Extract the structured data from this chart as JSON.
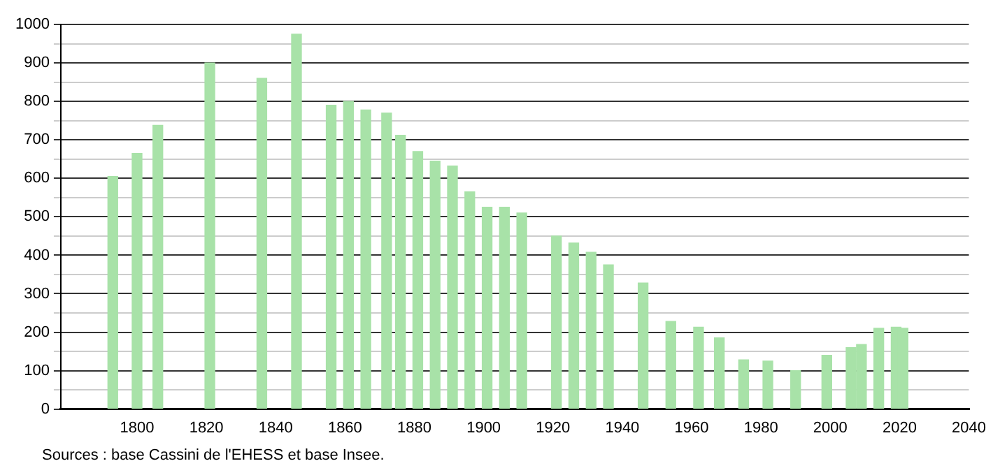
{
  "chart_data": {
    "type": "bar",
    "x": [
      1793,
      1800,
      1806,
      1821,
      1836,
      1846,
      1856,
      1861,
      1866,
      1872,
      1876,
      1881,
      1886,
      1891,
      1896,
      1901,
      1906,
      1911,
      1921,
      1926,
      1931,
      1936,
      1946,
      1954,
      1962,
      1968,
      1975,
      1982,
      1990,
      1999,
      2006,
      2009,
      2014,
      2019,
      2021
    ],
    "values": [
      605,
      665,
      738,
      900,
      860,
      975,
      790,
      800,
      778,
      770,
      712,
      670,
      645,
      632,
      565,
      525,
      525,
      510,
      450,
      432,
      408,
      375,
      328,
      228,
      213,
      185,
      128,
      125,
      100,
      140,
      160,
      168,
      210,
      213,
      210
    ],
    "color": "#a8e2a8",
    "xlim": [
      1778,
      2040
    ],
    "xticks": [
      1800,
      1820,
      1840,
      1860,
      1880,
      1900,
      1920,
      1940,
      1960,
      1980,
      2000,
      2020,
      2040
    ],
    "ylim": [
      0,
      1000
    ],
    "yticks": [
      0,
      {
        "value": 50,
        "label": null
      },
      100,
      {
        "value": 150,
        "label": null
      },
      200,
      {
        "value": 250,
        "label": null
      },
      300,
      {
        "value": 350,
        "label": null
      },
      400,
      {
        "value": 450,
        "label": null
      },
      500,
      {
        "value": 550,
        "label": null
      },
      600,
      {
        "value": 650,
        "label": null
      },
      700,
      {
        "value": 750,
        "label": null
      },
      800,
      {
        "value": 850,
        "label": null
      },
      900,
      {
        "value": 950,
        "label": null
      },
      1000
    ],
    "grid": "y",
    "annotations": [
      "Sources : base Cassini de l'EHESS et base Insee."
    ]
  }
}
